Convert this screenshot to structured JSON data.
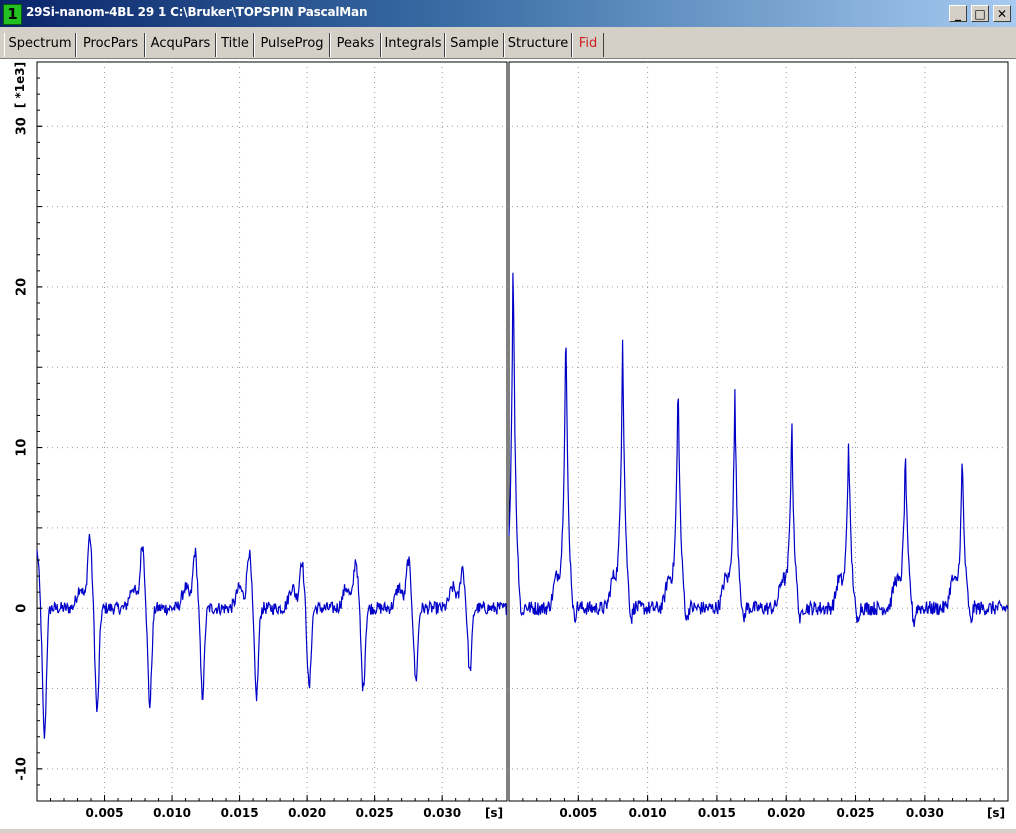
{
  "window": {
    "number": "1",
    "title": "29Si-nanom-4BL  29  1  C:\\Bruker\\TOPSPIN  PascalMan",
    "buttons": [
      "_",
      "□",
      "✕"
    ]
  },
  "tabs": [
    {
      "label": "Spectrum",
      "active": false
    },
    {
      "label": "ProcPars",
      "active": false
    },
    {
      "label": "AcquPars",
      "active": false
    },
    {
      "label": "Title",
      "active": false
    },
    {
      "label": "PulseProg",
      "active": false
    },
    {
      "label": "Peaks",
      "active": false
    },
    {
      "label": "Integrals",
      "active": false
    },
    {
      "label": "Sample",
      "active": false
    },
    {
      "label": "Structure",
      "active": false
    },
    {
      "label": "Fid",
      "active": true
    }
  ],
  "colors": {
    "trace": "#0000c8",
    "active_tab": "#d02020",
    "grid": "#9a9a9a"
  },
  "chart_data": {
    "type": "line",
    "yunit": "[ *1e3]",
    "xunit": "[s]",
    "yticks": [
      -10,
      0,
      10,
      20,
      30
    ],
    "ylim": [
      -12,
      34
    ],
    "panels": [
      {
        "name": "real",
        "xlim": [
          0,
          0.0348
        ],
        "xticks": [
          "0.005",
          "0.010",
          "0.015",
          "0.020",
          "0.025",
          "0.030"
        ],
        "echo_times": [
          0.0003,
          0.0042,
          0.0081,
          0.012,
          0.016,
          0.0199,
          0.0239,
          0.0278,
          0.0318
        ],
        "echo_max": [
          3.5,
          4.5,
          4.0,
          3.5,
          3.5,
          3.0,
          3.0,
          3.0,
          2.5
        ],
        "echo_min": [
          -8,
          -6.5,
          -6,
          -5.5,
          -5.5,
          -5,
          -5,
          -4.5,
          -4
        ]
      },
      {
        "name": "imaginary",
        "xlim": [
          0,
          0.036
        ],
        "xticks": [
          "0.005",
          "0.010",
          "0.015",
          "0.020",
          "0.025",
          "0.030"
        ],
        "echo_times": [
          0.0003,
          0.0041,
          0.0082,
          0.0122,
          0.0163,
          0.0204,
          0.0245,
          0.0286,
          0.0327
        ],
        "echo_max": [
          22.5,
          18.3,
          17.5,
          14.5,
          13.7,
          12.1,
          10.9,
          10.0,
          9.7
        ]
      }
    ]
  }
}
